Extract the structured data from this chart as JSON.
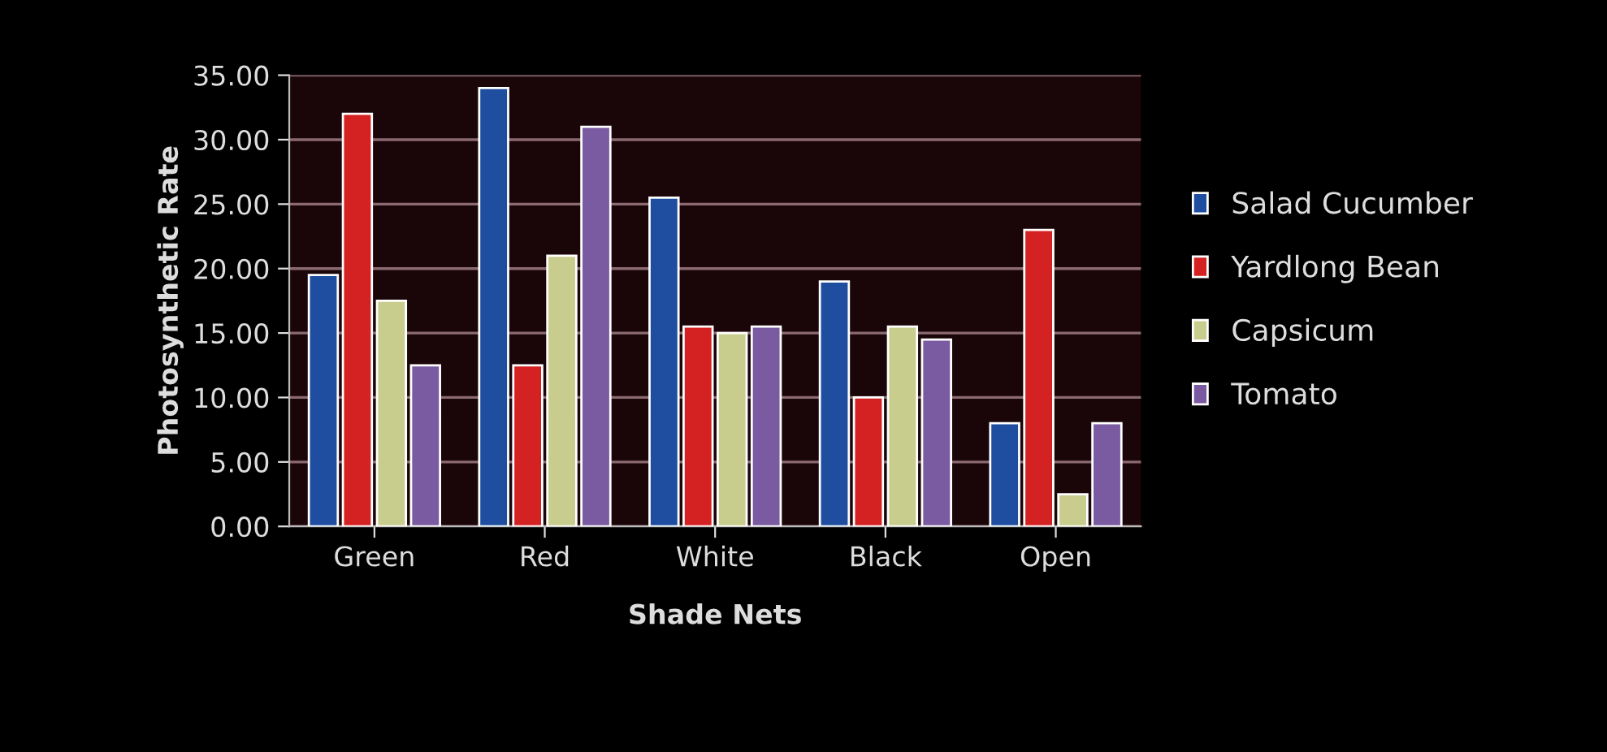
{
  "chart_data": {
    "type": "bar",
    "xlabel": "Shade Nets",
    "ylabel": "Photosynthetic Rate",
    "categories": [
      "Green",
      "Red",
      "White",
      "Black",
      "Open"
    ],
    "series": [
      {
        "name": "Salad Cucumber",
        "color": "#1f4ea0",
        "values": [
          19.5,
          34,
          25.5,
          19,
          8
        ]
      },
      {
        "name": "Yardlong Bean",
        "color": "#d42222",
        "values": [
          32,
          12.5,
          15.5,
          10,
          23
        ]
      },
      {
        "name": "Capsicum",
        "color": "#c8cc8c",
        "values": [
          17.5,
          21,
          15,
          15.5,
          2.5
        ]
      },
      {
        "name": "Tomato",
        "color": "#7a5aa0",
        "values": [
          12.5,
          31,
          15.5,
          14.5,
          8
        ]
      }
    ],
    "ylim": [
      0,
      35
    ],
    "yticks": [
      {
        "value": 0,
        "label": "0.00"
      },
      {
        "value": 5,
        "label": "5.00"
      },
      {
        "value": 10,
        "label": "10.00"
      },
      {
        "value": 15,
        "label": "15.00"
      },
      {
        "value": 20,
        "label": "20.00"
      },
      {
        "value": 25,
        "label": "25.00"
      },
      {
        "value": 30,
        "label": "30.00"
      },
      {
        "value": 35,
        "label": "35.00"
      }
    ],
    "grid": "y",
    "legend": "right"
  }
}
